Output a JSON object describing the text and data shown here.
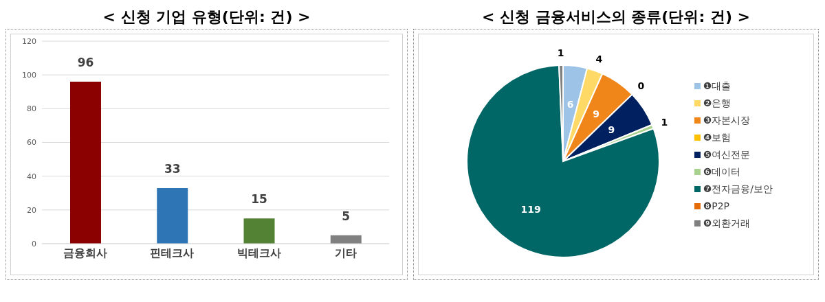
{
  "chart_data": [
    {
      "type": "bar",
      "title": "< 신청 기업 유형(단위: 건) >",
      "categories": [
        "금융회사",
        "핀테크사",
        "빅테크사",
        "기타"
      ],
      "values": [
        96,
        33,
        15,
        5
      ],
      "colors": [
        "#8b0000",
        "#2e75b6",
        "#548235",
        "#808080"
      ],
      "ylim": [
        0,
        120
      ],
      "yticks": [
        0,
        20,
        40,
        60,
        80,
        100,
        120
      ],
      "grid": "y",
      "data_labels": true
    },
    {
      "type": "pie",
      "title": "< 신청 금융서비스의 종류(단위: 건) >",
      "categories": [
        "❶대출",
        "❷은행",
        "❸자본시장",
        "❹보험",
        "❺여신전문",
        "❻데이터",
        "❼전자금융/보안",
        "❽P2P",
        "❾외환거래"
      ],
      "values": [
        6,
        4,
        9,
        0,
        9,
        1,
        119,
        0,
        1
      ],
      "value_labels": [
        "6",
        "4",
        "9",
        "0",
        "9",
        "1",
        "119",
        null,
        "1"
      ],
      "colors": [
        "#9dc3e6",
        "#ffd966",
        "#f0861a",
        "#ffc000",
        "#002060",
        "#a9d18e",
        "#006666",
        "#e46c0a",
        "#7f7f7f"
      ],
      "legend": "right"
    }
  ]
}
